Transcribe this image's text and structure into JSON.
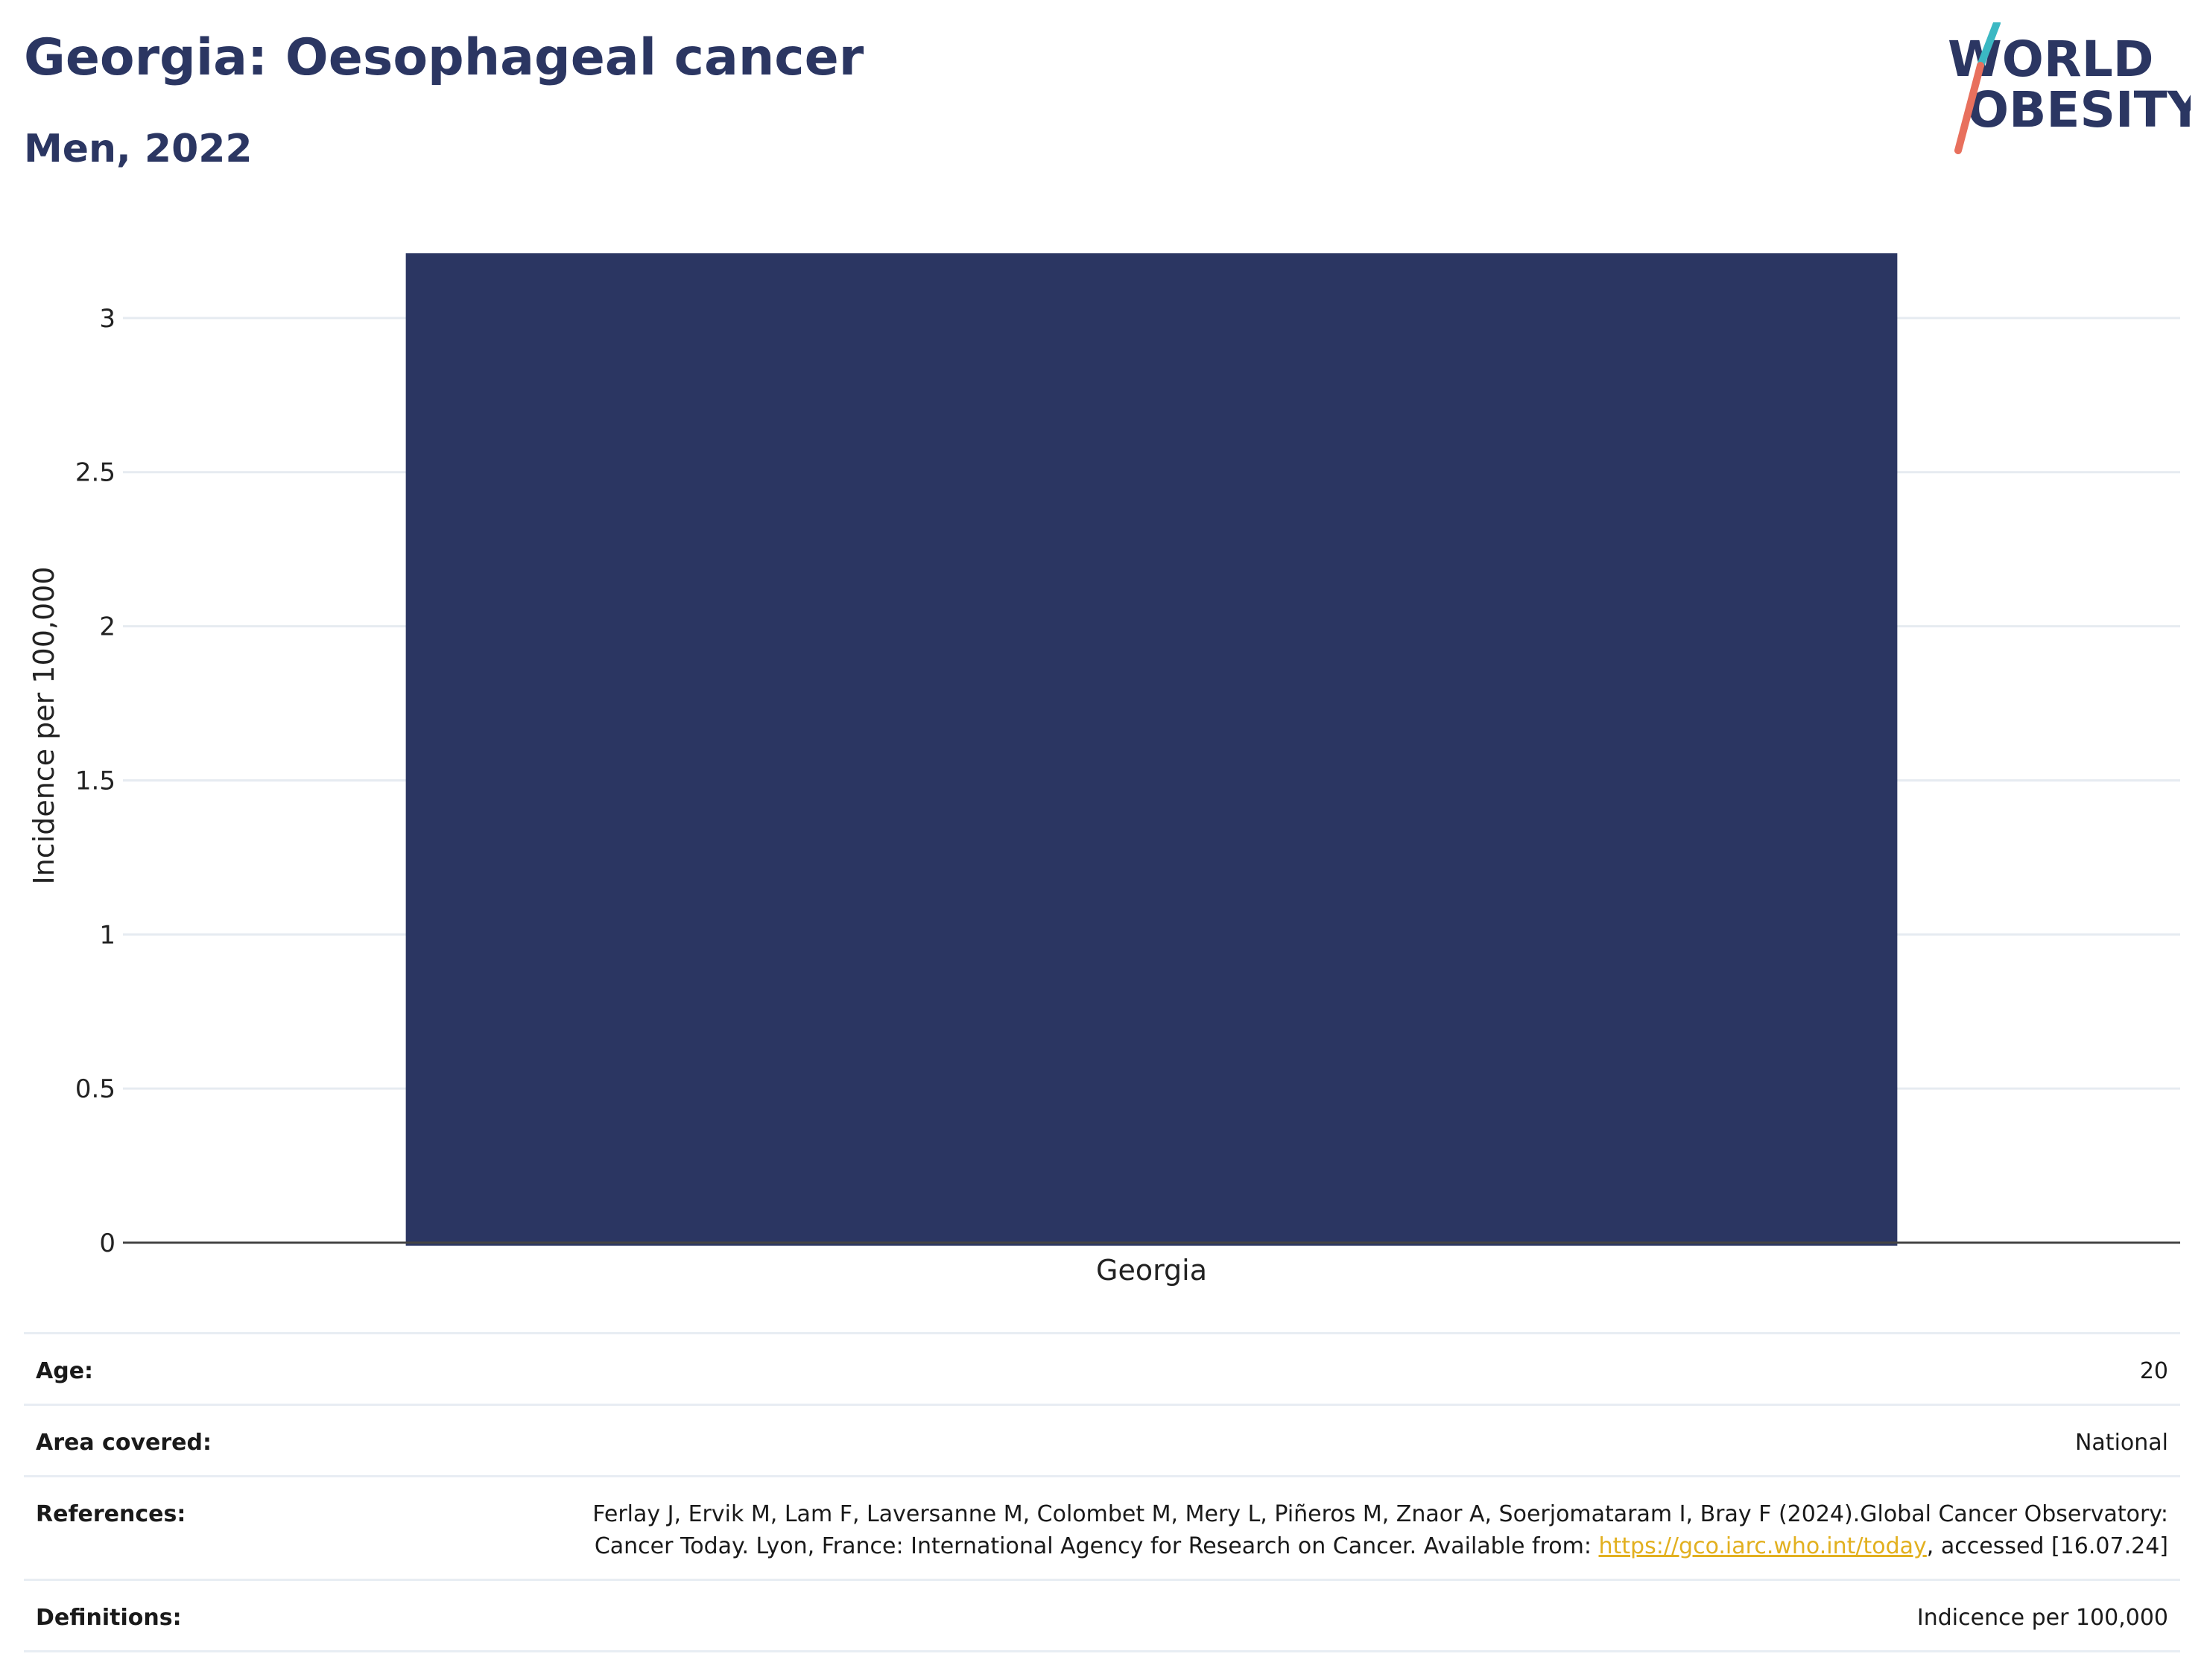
{
  "header": {
    "title": "Georgia: Oesophageal cancer",
    "subtitle": "Men, 2022"
  },
  "logo": {
    "line1": "WORLD",
    "line2": "OBESITY",
    "colors": {
      "text": "#2b3662",
      "slash_top": "#3bb8c3",
      "slash_bottom": "#e8705d"
    }
  },
  "chart_data": {
    "type": "bar",
    "categories": [
      "Georgia"
    ],
    "values": [
      3.21
    ],
    "title": "",
    "xlabel": "",
    "ylabel": "Incidence per 100,000",
    "ylim": [
      0,
      3.21
    ],
    "yticks": [
      "0",
      "0.5",
      "1",
      "1.5",
      "2",
      "2.5",
      "3"
    ],
    "grid": true,
    "bar_color": "#2b3662"
  },
  "info": {
    "age_label": "Age:",
    "age_value": "20",
    "area_label": "Area covered:",
    "area_value": "National",
    "references_label": "References:",
    "references_text_1": "Ferlay J, Ervik M, Lam F, Laversanne M, Colombet M, Mery L, Piñeros M, Znaor A, Soerjomataram I, Bray F (2024).Global Cancer Observatory: Cancer Today. Lyon, France: International Agency for Research on Cancer. Available from: ",
    "references_link": "https://gco.iarc.who.int/today",
    "references_text_2": ", accessed [16.07.24]",
    "definitions_label": "Definitions:",
    "definitions_value": "Indicence per 100,000"
  }
}
